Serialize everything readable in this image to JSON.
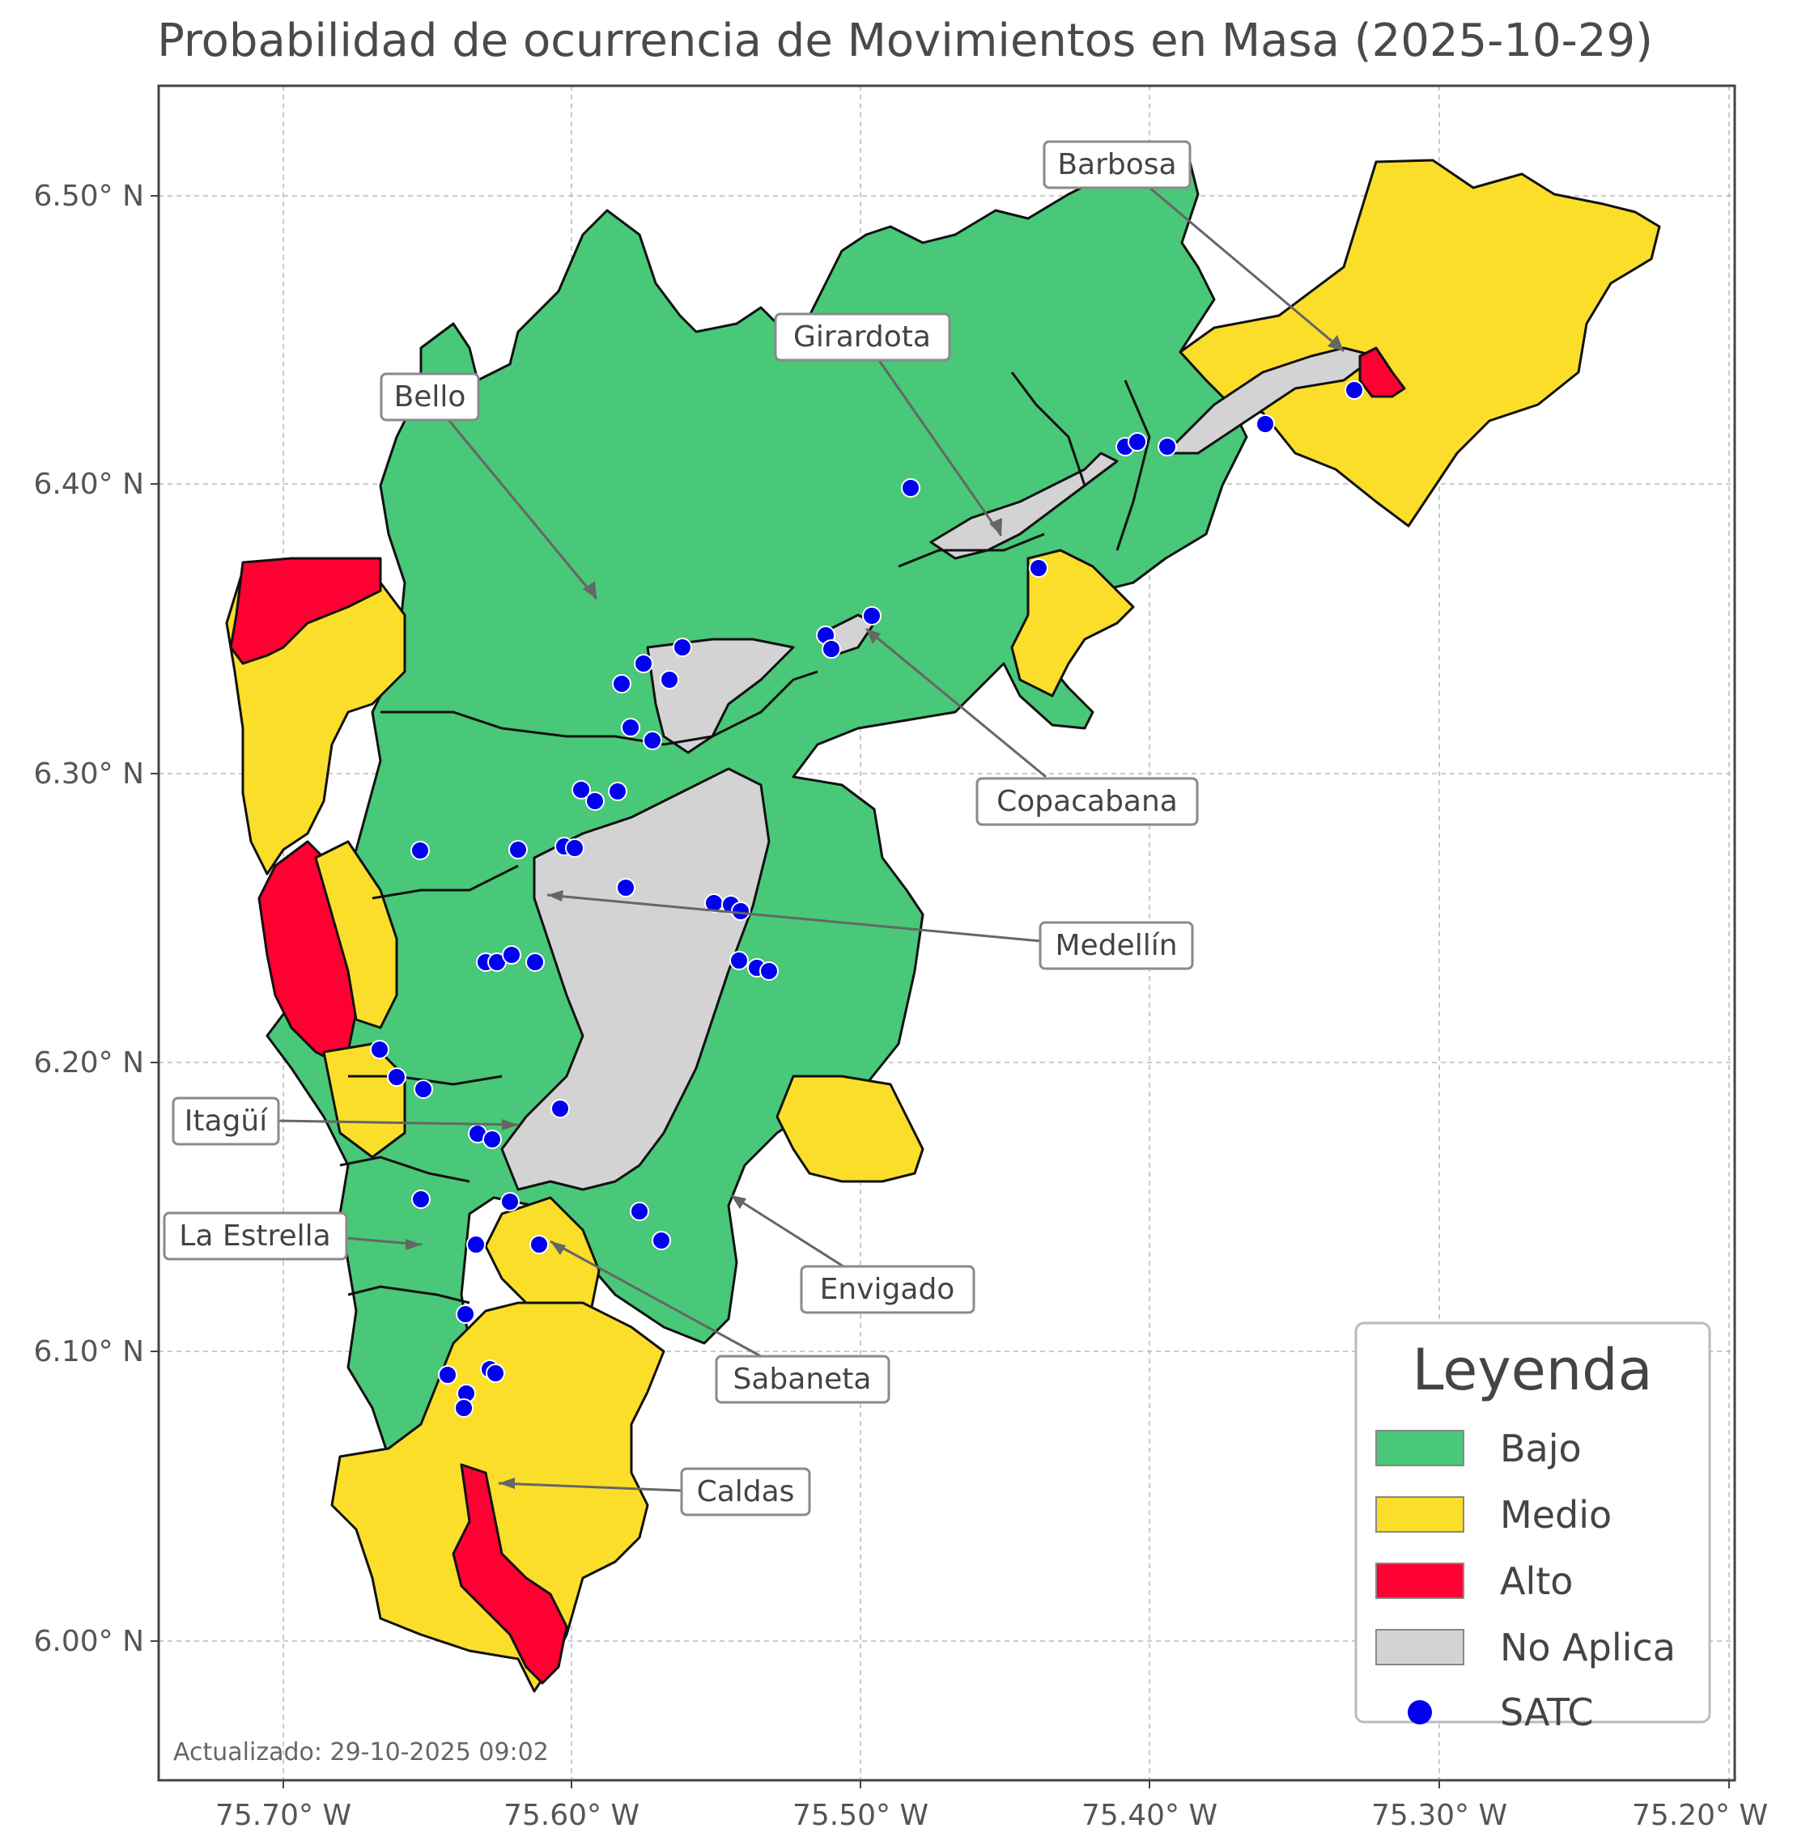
{
  "title": "Probabilidad de ocurrencia de Movimientos en Masa (2025-10-29)",
  "axes": {
    "y_ticks": [
      "6.50° N",
      "6.40° N",
      "6.30° N",
      "6.20° N",
      "6.10° N",
      "6.00° N"
    ],
    "x_ticks": [
      "75.70° W",
      "75.60° W",
      "75.50° W",
      "75.40° W",
      "75.30° W",
      "75.20° W"
    ]
  },
  "colors": {
    "bajo": "#48c878",
    "medio": "#fade2a",
    "alto": "#ff0033",
    "no_aplica": "#d3d3d3",
    "satc": "#0000ee",
    "border": "#111111"
  },
  "municipalities": {
    "barbosa": "Barbosa",
    "girardota": "Girardota",
    "bello": "Bello",
    "copacabana": "Copacabana",
    "medellin": "Medellín",
    "itagui": "Itagüí",
    "la_estrella": "La Estrella",
    "envigado": "Envigado",
    "sabaneta": "Sabaneta",
    "caldas": "Caldas"
  },
  "legend": {
    "title": "Leyenda",
    "bajo": "Bajo",
    "medio": "Medio",
    "alto": "Alto",
    "no_aplica": "No Aplica",
    "satc": "SATC"
  },
  "updated": "Actualizado: 29-10-2025 09:02"
}
